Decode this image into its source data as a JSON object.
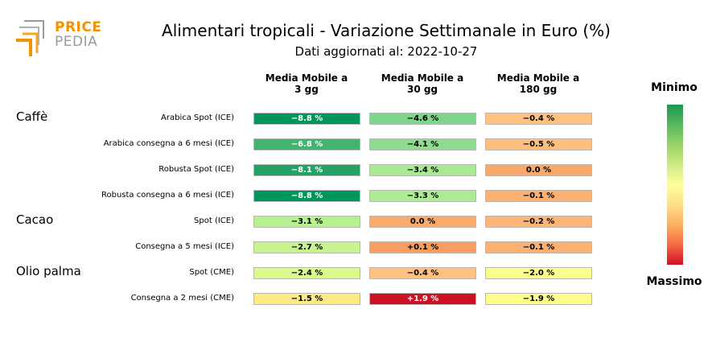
{
  "logo": {
    "line1": "PRICE",
    "line2": "PEDIA"
  },
  "chart_data": {
    "type": "heatmap",
    "title": "Alimentari tropicali - Variazione Settimanale in Euro (%)",
    "subtitle": "Dati aggiornati al: 2022-10-27",
    "columns": [
      "Media Mobile a\n3 gg",
      "Media Mobile a\n30 gg",
      "Media Mobile a\n180 gg"
    ],
    "groups": [
      {
        "name": "Caffè",
        "rows": [
          {
            "label": "Arabica Spot (ICE)",
            "values": [
              -8.8,
              -4.6,
              -0.4
            ],
            "display": [
              "−8.8 %",
              "−4.6 %",
              "−0.4 %"
            ],
            "colors": [
              "#00965a",
              "#7dd68a",
              "#fec27e"
            ]
          },
          {
            "label": "Arabica consegna a 6 mesi (ICE)",
            "values": [
              -6.8,
              -4.1,
              -0.5
            ],
            "display": [
              "−6.8 %",
              "−4.1 %",
              "−0.5 %"
            ],
            "colors": [
              "#41b46e",
              "#8ddc8e",
              "#febf7c"
            ]
          },
          {
            "label": "Robusta Spot (ICE)",
            "values": [
              -8.1,
              -3.4,
              0.0
            ],
            "display": [
              "−8.1 %",
              "−3.4 %",
              "0.0 %"
            ],
            "colors": [
              "#22a365",
              "#a8ea92",
              "#fca86a"
            ]
          },
          {
            "label": "Robusta consegna a 6 mesi (ICE)",
            "values": [
              -8.8,
              -3.3,
              -0.1
            ],
            "display": [
              "−8.8 %",
              "−3.3 %",
              "−0.1 %"
            ],
            "colors": [
              "#00965a",
              "#abeb92",
              "#fdb070"
            ]
          }
        ]
      },
      {
        "name": "Cacao",
        "rows": [
          {
            "label": "Spot (ICE)",
            "values": [
              -3.1,
              0.0,
              -0.2
            ],
            "display": [
              "−3.1 %",
              "0.0 %",
              "−0.2 %"
            ],
            "colors": [
              "#b7f08e",
              "#fcaa6a",
              "#fdb474"
            ]
          },
          {
            "label": "Consegna a 5 mesi (ICE)",
            "values": [
              -2.7,
              0.1,
              -0.1
            ],
            "display": [
              "−2.7 %",
              "+0.1 %",
              "−0.1 %"
            ],
            "colors": [
              "#c7f48e",
              "#f99e5e",
              "#fdb070"
            ]
          }
        ]
      },
      {
        "name": "Olio palma",
        "rows": [
          {
            "label": "Spot (CME)",
            "values": [
              -2.4,
              -0.4,
              -2.0
            ],
            "display": [
              "−2.4 %",
              "−0.4 %",
              "−2.0 %"
            ],
            "colors": [
              "#dafb8c",
              "#fec27e",
              "#fbff8c"
            ]
          },
          {
            "label": "Consegna a 2 mesi (CME)",
            "values": [
              -1.5,
              1.9,
              -1.9
            ],
            "display": [
              "−1.5 %",
              "+1.9 %",
              "−1.9 %"
            ],
            "colors": [
              "#ffe985",
              "#cc1124",
              "#fdfd8a"
            ]
          }
        ]
      }
    ],
    "colorbar": {
      "top_label": "Minimo",
      "bottom_label": "Massimo"
    }
  }
}
